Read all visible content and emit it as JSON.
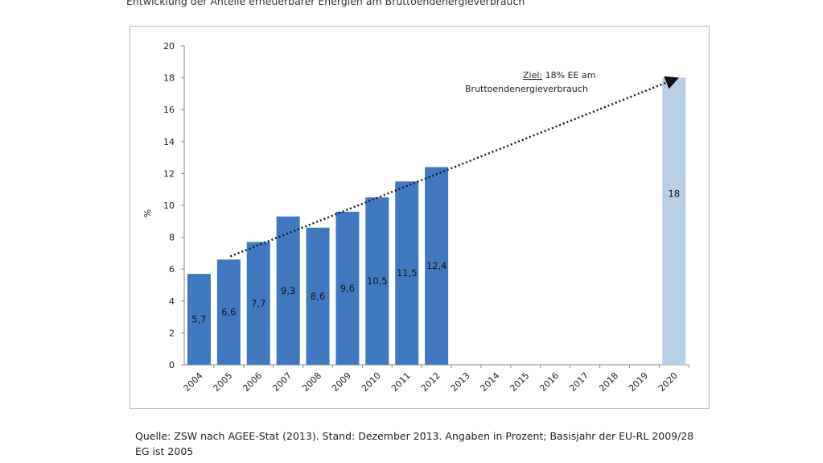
{
  "header": {
    "title": "Entwicklung der Anteile erneuerbarer Energien am Bruttoendenergieverbrauch"
  },
  "chart_data": {
    "type": "bar",
    "categories": [
      "2004",
      "2005",
      "2006",
      "2007",
      "2008",
      "2009",
      "2010",
      "2011",
      "2012",
      "2013",
      "2014",
      "2015",
      "2016",
      "2017",
      "2018",
      "2019",
      "2020"
    ],
    "series": [
      {
        "values": [
          5.7,
          6.6,
          7.7,
          9.3,
          8.6,
          9.6,
          10.5,
          11.5,
          12.4,
          null,
          null,
          null,
          null,
          null,
          null,
          null,
          null
        ]
      },
      {
        "values": [
          null,
          null,
          null,
          null,
          null,
          null,
          null,
          null,
          null,
          null,
          null,
          null,
          null,
          null,
          null,
          null,
          18
        ]
      }
    ],
    "data_labels": [
      "5,7",
      "6,6",
      "7,7",
      "9,3",
      "8,6",
      "9,6",
      "10,5",
      "11,5",
      "12,4",
      "",
      "",
      "",
      "",
      "",
      "",
      "",
      "18"
    ],
    "ylabel": "%",
    "ylim": [
      0,
      20
    ],
    "yticks": [
      0,
      2,
      4,
      6,
      8,
      10,
      12,
      14,
      16,
      18,
      20
    ],
    "grid": false,
    "colors": {
      "actual": "#3f79bf",
      "target": "#b8cfe9",
      "arrow": "#111111"
    },
    "trend_arrow": {
      "from": {
        "x": "2005",
        "y": 6.6
      },
      "to": {
        "x": "2020",
        "y": 18
      },
      "style": "dotted"
    },
    "annotation": {
      "underlined": "Ziel:",
      "line1_rest": " 18% EE am",
      "line2": "Bruttoendenergieverbrauch"
    }
  },
  "footer": {
    "source_line1": "Quelle: ZSW nach AGEE-Stat (2013). Stand: Dezember 2013. Angaben in Prozent; Basisjahr der EU-RL 2009/28",
    "source_line2": "EG ist 2005"
  }
}
